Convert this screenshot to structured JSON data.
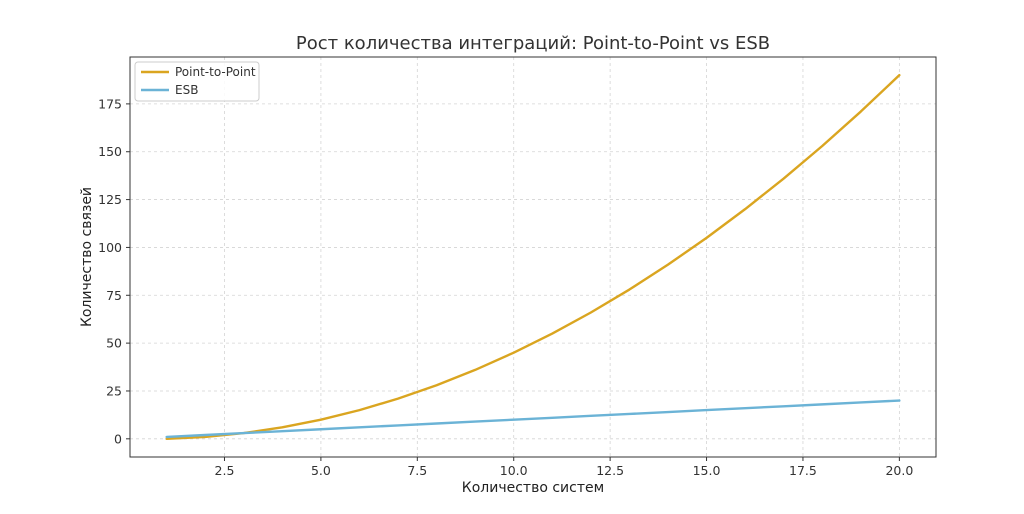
{
  "chart_data": {
    "type": "line",
    "title": "Рост количества интеграций: Point-to-Point vs ESB",
    "xlabel": "Количество систем",
    "ylabel": "Количество связей",
    "xlim": [
      0.05,
      20.95
    ],
    "ylim": [
      -9.5,
      199.5
    ],
    "x_ticks": [
      2.5,
      5.0,
      7.5,
      10.0,
      12.5,
      15.0,
      17.5,
      20.0
    ],
    "x_tick_labels": [
      "2.5",
      "5.0",
      "7.5",
      "10.0",
      "12.5",
      "15.0",
      "17.5",
      "20.0"
    ],
    "y_ticks": [
      0,
      25,
      50,
      75,
      100,
      125,
      150,
      175
    ],
    "y_tick_labels": [
      "0",
      "25",
      "50",
      "75",
      "100",
      "125",
      "150",
      "175"
    ],
    "grid": true,
    "legend_position": "top-left",
    "x": [
      1,
      2,
      3,
      4,
      5,
      6,
      7,
      8,
      9,
      10,
      11,
      12,
      13,
      14,
      15,
      16,
      17,
      18,
      19,
      20
    ],
    "series": [
      {
        "name": "Point-to-Point",
        "color": "#DAA520",
        "values": [
          0,
          1,
          3,
          6,
          10,
          15,
          21,
          28,
          36,
          45,
          55,
          66,
          78,
          91,
          105,
          120,
          136,
          153,
          171,
          190
        ]
      },
      {
        "name": "ESB",
        "color": "#6BB3D6",
        "values": [
          1,
          2,
          3,
          4,
          5,
          6,
          7,
          8,
          9,
          10,
          11,
          12,
          13,
          14,
          15,
          16,
          17,
          18,
          19,
          20
        ]
      }
    ]
  }
}
